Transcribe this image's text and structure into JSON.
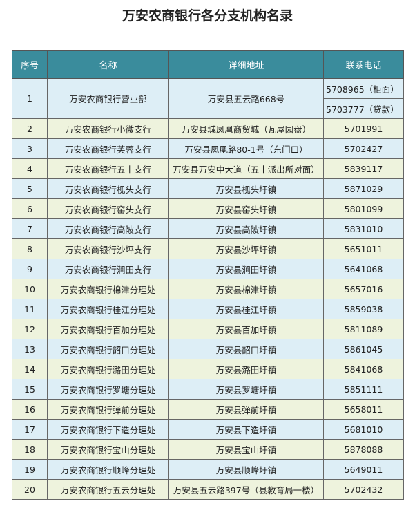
{
  "title": "万安农商银行各分支机构名录",
  "table": {
    "headers": [
      "序号",
      "名称",
      "详细地址",
      "联系电话"
    ],
    "rows": [
      {
        "no": "1",
        "name": "万安农商银行营业部",
        "address": "万安县五云路668号",
        "phones": [
          "5708965（柜面）",
          "5703777（贷款）"
        ]
      },
      {
        "no": "2",
        "name": "万安农商银行小微支行",
        "address": "万安县城凤凰商贸城（瓦屋园盘）",
        "phones": [
          "5701991"
        ]
      },
      {
        "no": "3",
        "name": "万安农商银行芙蓉支行",
        "address": "万安县凤凰路80-1号（东门口）",
        "phones": [
          "5702427"
        ]
      },
      {
        "no": "4",
        "name": "万安农商银行五丰支行",
        "address": "万安县万安中大道（五丰派出所对面）",
        "phones": [
          "5839117"
        ]
      },
      {
        "no": "5",
        "name": "万安农商银行枧头支行",
        "address": "万安县枧头圩镇",
        "phones": [
          "5871029"
        ]
      },
      {
        "no": "6",
        "name": "万安农商银行窑头支行",
        "address": "万安县窑头圩镇",
        "phones": [
          "5801099"
        ]
      },
      {
        "no": "7",
        "name": "万安农商银行高陂支行",
        "address": "万安县高陂圩镇",
        "phones": [
          "5831010"
        ]
      },
      {
        "no": "8",
        "name": "万安农商银行沙坪支行",
        "address": "万安县沙坪圩镇",
        "phones": [
          "5651011"
        ]
      },
      {
        "no": "9",
        "name": "万安农商银行涧田支行",
        "address": "万安县涧田圩镇",
        "phones": [
          "5641068"
        ]
      },
      {
        "no": "10",
        "name": "万安农商银行棉津分理处",
        "address": "万安县棉津圩镇",
        "phones": [
          "5657016"
        ]
      },
      {
        "no": "11",
        "name": "万安农商银行桂江分理处",
        "address": "万安县桂江圩镇",
        "phones": [
          "5859038"
        ]
      },
      {
        "no": "12",
        "name": "万安农商银行百加分理处",
        "address": "万安县百加圩镇",
        "phones": [
          "5811089"
        ]
      },
      {
        "no": "13",
        "name": "万安农商银行韶口分理处",
        "address": "万安县韶口圩镇",
        "phones": [
          "5861045"
        ]
      },
      {
        "no": "14",
        "name": "万安农商银行潞田分理处",
        "address": "万安县潞田圩镇",
        "phones": [
          "5841068"
        ]
      },
      {
        "no": "15",
        "name": "万安农商银行罗塘分理处",
        "address": "万安县罗塘圩镇",
        "phones": [
          "5851111"
        ]
      },
      {
        "no": "16",
        "name": "万安农商银行弹前分理处",
        "address": "万安县弹前圩镇",
        "phones": [
          "5658011"
        ]
      },
      {
        "no": "17",
        "name": "万安农商银行下造分理处",
        "address": "万安县下造圩镇",
        "phones": [
          "5681010"
        ]
      },
      {
        "no": "18",
        "name": "万安农商银行宝山分理处",
        "address": "万安县宝山圩镇",
        "phones": [
          "5878088"
        ]
      },
      {
        "no": "19",
        "name": "万安农商银行顺峰分理处",
        "address": "万安县顺峰圩镇",
        "phones": [
          "5649011"
        ]
      },
      {
        "no": "20",
        "name": "万安农商银行五云分理处",
        "address": "万安县五云路397号（县教育局一楼）",
        "phones": [
          "5702432"
        ]
      }
    ]
  }
}
